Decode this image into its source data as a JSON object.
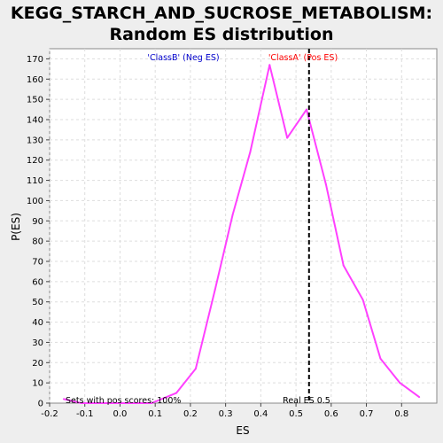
{
  "chart_data": {
    "type": "line",
    "title": [
      "KEGG_STARCH_AND_SUCROSE_METABOLISM:",
      "Random ES distribution"
    ],
    "xlabel": "ES",
    "ylabel": "P(ES)",
    "xlim": [
      -0.2,
      0.9
    ],
    "ylim": [
      0,
      175
    ],
    "x_ticks": [
      -0.2,
      -0.1,
      0.0,
      0.1,
      0.2,
      0.3,
      0.4,
      0.5,
      0.6,
      0.7,
      0.8
    ],
    "x_tick_labels": [
      "-0.2",
      "-0.1",
      "0.0",
      "0.1",
      "0.2",
      "0.3",
      "0.4",
      "0.5",
      "0.6",
      "0.7",
      "0.8"
    ],
    "y_ticks": [
      0,
      10,
      20,
      30,
      40,
      50,
      60,
      70,
      80,
      90,
      100,
      110,
      120,
      130,
      140,
      150,
      160,
      170
    ],
    "y_tick_labels": [
      "0",
      "10",
      "20",
      "30",
      "40",
      "50",
      "60",
      "70",
      "80",
      "90",
      "100",
      "110",
      "120",
      "130",
      "140",
      "150",
      "160",
      "170"
    ],
    "grid": true,
    "series": [
      {
        "color": "#ff40ff",
        "x": [
          -0.16,
          -0.11,
          -0.06,
          -0.01,
          0.04,
          0.09,
          0.16,
          0.215,
          0.27,
          0.32,
          0.37,
          0.425,
          0.475,
          0.53,
          0.585,
          0.635,
          0.69,
          0.74,
          0.795,
          0.85
        ],
        "y": [
          2,
          0,
          0,
          0,
          0,
          0,
          5,
          17,
          56,
          93,
          124,
          167,
          131,
          145,
          108,
          68,
          51,
          22,
          10,
          3
        ]
      }
    ],
    "real_es": {
      "x": 0.537,
      "label": "Real ES 0.5",
      "color": "#000000"
    },
    "annotations": {
      "neg": {
        "text": "'ClassB' (Neg ES)",
        "color": "#0000cc"
      },
      "pos": {
        "text": "'ClassA' (Pos ES)",
        "color": "#ff0000"
      },
      "footer": {
        "text": "Sets with pos scores: 100%",
        "color": "#000000"
      }
    }
  }
}
